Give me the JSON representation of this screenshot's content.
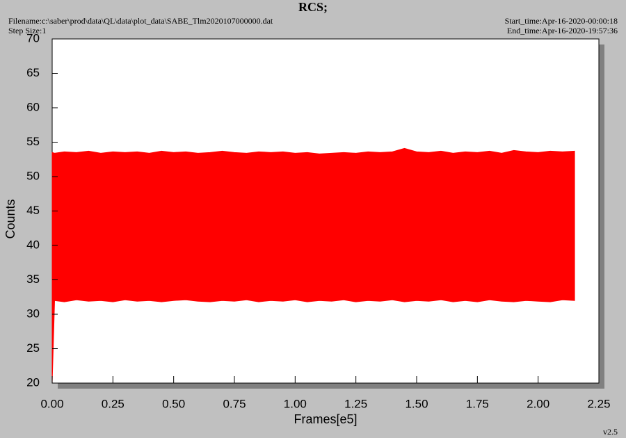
{
  "chart_data": {
    "type": "range",
    "title": "RCS;",
    "filename": "Filename:c:\\saber\\prod\\data\\QL\\data\\plot_data\\SABE_Tlm2020107000000.dat",
    "step_size": "Step Size:1",
    "start_time": "Start_time:Apr-16-2020-00:00:18",
    "end_time": "End_time:Apr-16-2020-19:57:36",
    "version": "v2.5",
    "xlabel": "Frames[e5]",
    "ylabel": "Counts",
    "color": "#ff0000",
    "xlim": [
      0,
      2.25
    ],
    "ylim": [
      20,
      70
    ],
    "xticks": [
      {
        "value": 0,
        "label": "0.00"
      },
      {
        "value": 0.25,
        "label": "0.25"
      },
      {
        "value": 0.5,
        "label": "0.50"
      },
      {
        "value": 0.75,
        "label": "0.75"
      },
      {
        "value": 1,
        "label": "1.00"
      },
      {
        "value": 1.25,
        "label": "1.25"
      },
      {
        "value": 1.5,
        "label": "1.50"
      },
      {
        "value": 1.75,
        "label": "1.75"
      },
      {
        "value": 2,
        "label": "2.00"
      },
      {
        "value": 2.25,
        "label": "2.25"
      }
    ],
    "yticks": [
      20,
      25,
      30,
      35,
      40,
      45,
      50,
      55,
      60,
      65,
      70
    ],
    "x": [
      0,
      0.01,
      0.05,
      0.1,
      0.15,
      0.2,
      0.25,
      0.3,
      0.35,
      0.4,
      0.45,
      0.5,
      0.55,
      0.6,
      0.65,
      0.7,
      0.75,
      0.8,
      0.85,
      0.9,
      0.95,
      1,
      1.05,
      1.1,
      1.15,
      1.2,
      1.25,
      1.3,
      1.35,
      1.4,
      1.45,
      1.5,
      1.55,
      1.6,
      1.65,
      1.7,
      1.75,
      1.8,
      1.85,
      1.9,
      1.95,
      2,
      2.05,
      2.1,
      2.15
    ],
    "high": [
      53.5,
      53.4,
      53.6,
      53.5,
      53.7,
      53.4,
      53.6,
      53.5,
      53.6,
      53.4,
      53.7,
      53.5,
      53.6,
      53.4,
      53.5,
      53.7,
      53.5,
      53.4,
      53.6,
      53.5,
      53.6,
      53.4,
      53.5,
      53.3,
      53.4,
      53.5,
      53.4,
      53.6,
      53.5,
      53.6,
      54.1,
      53.6,
      53.5,
      53.7,
      53.4,
      53.6,
      53.5,
      53.7,
      53.4,
      53.8,
      53.6,
      53.5,
      53.7,
      53.6,
      53.7
    ],
    "low": [
      20,
      32.0,
      31.8,
      32.1,
      31.9,
      32.0,
      31.8,
      32.1,
      31.9,
      32.0,
      31.8,
      32.0,
      32.1,
      31.9,
      31.8,
      32.0,
      31.9,
      32.1,
      31.8,
      32.0,
      31.9,
      32.1,
      31.8,
      32.0,
      31.9,
      32.1,
      31.8,
      32.0,
      31.9,
      32.1,
      31.8,
      32.0,
      31.9,
      32.1,
      31.8,
      32.0,
      31.8,
      32.1,
      31.9,
      31.8,
      32.0,
      31.9,
      31.8,
      32.1,
      32.0
    ]
  }
}
